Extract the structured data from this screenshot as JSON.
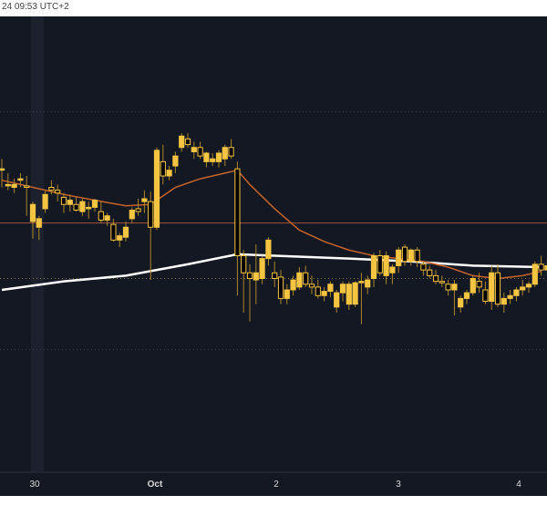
{
  "header": {
    "timestamp": "24 09:53 UTC+2"
  },
  "colors": {
    "background": "#141823",
    "candle": "#f5c542",
    "ema_fast": "#c8642a",
    "ma_slow": "#ffffff",
    "hline_orange": "#a0523a",
    "tick_text": "#d9d9d9"
  },
  "chart_data": {
    "type": "candlestick",
    "x_tick_labels": [
      "30",
      "Oct",
      "2",
      "3",
      "4"
    ],
    "candles": [
      {
        "o": 213,
        "h": 220,
        "l": 200,
        "c": 213
      },
      {
        "o": 202,
        "h": 210,
        "l": 198,
        "c": 202
      },
      {
        "o": 200,
        "h": 206,
        "l": 196,
        "c": 202
      },
      {
        "o": 205,
        "h": 210,
        "l": 200,
        "c": 206
      },
      {
        "o": 201,
        "h": 208,
        "l": 180,
        "c": 200
      },
      {
        "o": 176,
        "h": 190,
        "l": 164,
        "c": 188
      },
      {
        "o": 172,
        "h": 180,
        "l": 163,
        "c": 178
      },
      {
        "o": 185,
        "h": 198,
        "l": 182,
        "c": 195
      },
      {
        "o": 200,
        "h": 205,
        "l": 195,
        "c": 198
      },
      {
        "o": 198,
        "h": 202,
        "l": 190,
        "c": 196
      },
      {
        "o": 193,
        "h": 196,
        "l": 182,
        "c": 188
      },
      {
        "o": 188,
        "h": 195,
        "l": 183,
        "c": 191
      },
      {
        "o": 188,
        "h": 193,
        "l": 183,
        "c": 184
      },
      {
        "o": 183,
        "h": 192,
        "l": 180,
        "c": 190
      },
      {
        "o": 185,
        "h": 190,
        "l": 178,
        "c": 186
      },
      {
        "o": 186,
        "h": 192,
        "l": 183,
        "c": 191
      },
      {
        "o": 183,
        "h": 190,
        "l": 175,
        "c": 177
      },
      {
        "o": 177,
        "h": 182,
        "l": 173,
        "c": 180
      },
      {
        "o": 174,
        "h": 178,
        "l": 162,
        "c": 163
      },
      {
        "o": 163,
        "h": 168,
        "l": 158,
        "c": 166
      },
      {
        "o": 165,
        "h": 176,
        "l": 162,
        "c": 172
      },
      {
        "o": 178,
        "h": 186,
        "l": 175,
        "c": 184
      },
      {
        "o": 185,
        "h": 192,
        "l": 180,
        "c": 183
      },
      {
        "o": 190,
        "h": 198,
        "l": 182,
        "c": 192
      },
      {
        "o": 190,
        "h": 197,
        "l": 135,
        "c": 172
      },
      {
        "o": 172,
        "h": 228,
        "l": 170,
        "c": 226
      },
      {
        "o": 218,
        "h": 230,
        "l": 202,
        "c": 208
      },
      {
        "o": 208,
        "h": 215,
        "l": 205,
        "c": 212
      },
      {
        "o": 215,
        "h": 225,
        "l": 210,
        "c": 222
      },
      {
        "o": 228,
        "h": 238,
        "l": 225,
        "c": 236
      },
      {
        "o": 234,
        "h": 238,
        "l": 228,
        "c": 230
      },
      {
        "o": 225,
        "h": 232,
        "l": 220,
        "c": 228
      },
      {
        "o": 228,
        "h": 232,
        "l": 220,
        "c": 222
      },
      {
        "o": 218,
        "h": 225,
        "l": 214,
        "c": 224
      },
      {
        "o": 218,
        "h": 224,
        "l": 215,
        "c": 220
      },
      {
        "o": 218,
        "h": 226,
        "l": 214,
        "c": 224
      },
      {
        "o": 220,
        "h": 230,
        "l": 215,
        "c": 228
      },
      {
        "o": 228,
        "h": 234,
        "l": 220,
        "c": 222
      },
      {
        "o": 213,
        "h": 218,
        "l": 124,
        "c": 152
      },
      {
        "o": 152,
        "h": 156,
        "l": 112,
        "c": 140
      },
      {
        "o": 140,
        "h": 146,
        "l": 106,
        "c": 136
      },
      {
        "o": 135,
        "h": 160,
        "l": 118,
        "c": 140
      },
      {
        "o": 136,
        "h": 152,
        "l": 132,
        "c": 150
      },
      {
        "o": 150,
        "h": 165,
        "l": 145,
        "c": 163
      },
      {
        "o": 140,
        "h": 148,
        "l": 130,
        "c": 136
      },
      {
        "o": 137,
        "h": 142,
        "l": 118,
        "c": 122
      },
      {
        "o": 122,
        "h": 132,
        "l": 118,
        "c": 128
      },
      {
        "o": 128,
        "h": 138,
        "l": 124,
        "c": 135
      },
      {
        "o": 130,
        "h": 144,
        "l": 128,
        "c": 140
      },
      {
        "o": 140,
        "h": 145,
        "l": 130,
        "c": 132
      },
      {
        "o": 132,
        "h": 138,
        "l": 125,
        "c": 130
      },
      {
        "o": 130,
        "h": 135,
        "l": 122,
        "c": 124
      },
      {
        "o": 124,
        "h": 130,
        "l": 120,
        "c": 127
      },
      {
        "o": 127,
        "h": 134,
        "l": 123,
        "c": 132
      },
      {
        "o": 116,
        "h": 128,
        "l": 112,
        "c": 126
      },
      {
        "o": 126,
        "h": 134,
        "l": 120,
        "c": 132
      },
      {
        "o": 118,
        "h": 134,
        "l": 114,
        "c": 132
      },
      {
        "o": 118,
        "h": 134,
        "l": 116,
        "c": 133
      },
      {
        "o": 134,
        "h": 140,
        "l": 104,
        "c": 134
      },
      {
        "o": 130,
        "h": 138,
        "l": 125,
        "c": 135
      },
      {
        "o": 136,
        "h": 154,
        "l": 130,
        "c": 152
      },
      {
        "o": 152,
        "h": 156,
        "l": 138,
        "c": 140
      },
      {
        "o": 138,
        "h": 155,
        "l": 132,
        "c": 152
      },
      {
        "o": 140,
        "h": 146,
        "l": 132,
        "c": 144
      },
      {
        "o": 145,
        "h": 158,
        "l": 140,
        "c": 156
      },
      {
        "o": 158,
        "h": 160,
        "l": 145,
        "c": 148
      },
      {
        "o": 148,
        "h": 157,
        "l": 145,
        "c": 156
      },
      {
        "o": 156,
        "h": 158,
        "l": 144,
        "c": 148
      },
      {
        "o": 146,
        "h": 148,
        "l": 138,
        "c": 142
      },
      {
        "o": 142,
        "h": 145,
        "l": 136,
        "c": 138
      },
      {
        "o": 138,
        "h": 142,
        "l": 132,
        "c": 134
      },
      {
        "o": 134,
        "h": 138,
        "l": 130,
        "c": 133
      },
      {
        "o": 132,
        "h": 135,
        "l": 124,
        "c": 128
      },
      {
        "o": 128,
        "h": 135,
        "l": 110,
        "c": 132
      },
      {
        "o": 116,
        "h": 124,
        "l": 112,
        "c": 122
      },
      {
        "o": 122,
        "h": 128,
        "l": 118,
        "c": 126
      },
      {
        "o": 126,
        "h": 138,
        "l": 124,
        "c": 136
      },
      {
        "o": 134,
        "h": 140,
        "l": 126,
        "c": 130
      },
      {
        "o": 128,
        "h": 134,
        "l": 118,
        "c": 120
      },
      {
        "o": 120,
        "h": 145,
        "l": 114,
        "c": 140
      },
      {
        "o": 140,
        "h": 146,
        "l": 116,
        "c": 118
      },
      {
        "o": 118,
        "h": 126,
        "l": 112,
        "c": 122
      },
      {
        "o": 122,
        "h": 128,
        "l": 118,
        "c": 124
      },
      {
        "o": 124,
        "h": 130,
        "l": 120,
        "c": 128
      },
      {
        "o": 128,
        "h": 135,
        "l": 124,
        "c": 130
      },
      {
        "o": 130,
        "h": 134,
        "l": 126,
        "c": 132
      },
      {
        "o": 132,
        "h": 148,
        "l": 130,
        "c": 146
      },
      {
        "o": 146,
        "h": 152,
        "l": 138,
        "c": 142
      },
      {
        "o": 142,
        "h": 150,
        "l": 138,
        "c": 145
      }
    ],
    "ema_fast": [
      {
        "i": 0,
        "v": 205
      },
      {
        "i": 5,
        "v": 200
      },
      {
        "i": 10,
        "v": 195
      },
      {
        "i": 15,
        "v": 191
      },
      {
        "i": 20,
        "v": 187
      },
      {
        "i": 24,
        "v": 188
      },
      {
        "i": 28,
        "v": 200
      },
      {
        "i": 32,
        "v": 206
      },
      {
        "i": 36,
        "v": 210
      },
      {
        "i": 38,
        "v": 212
      },
      {
        "i": 40,
        "v": 202
      },
      {
        "i": 44,
        "v": 185
      },
      {
        "i": 48,
        "v": 170
      },
      {
        "i": 52,
        "v": 162
      },
      {
        "i": 56,
        "v": 156
      },
      {
        "i": 60,
        "v": 152
      },
      {
        "i": 64,
        "v": 150
      },
      {
        "i": 68,
        "v": 148
      },
      {
        "i": 72,
        "v": 144
      },
      {
        "i": 76,
        "v": 138
      },
      {
        "i": 80,
        "v": 136
      },
      {
        "i": 84,
        "v": 138
      },
      {
        "i": 87,
        "v": 141
      }
    ],
    "ma_slow": [
      {
        "i": 0,
        "v": 128
      },
      {
        "i": 10,
        "v": 134
      },
      {
        "i": 20,
        "v": 138
      },
      {
        "i": 30,
        "v": 146
      },
      {
        "i": 38,
        "v": 153
      },
      {
        "i": 44,
        "v": 152
      },
      {
        "i": 56,
        "v": 150
      },
      {
        "i": 66,
        "v": 148
      },
      {
        "i": 76,
        "v": 145
      },
      {
        "i": 87,
        "v": 144
      }
    ],
    "h_lines": [
      {
        "v": 175,
        "style": "solid",
        "color": "orange"
      },
      {
        "v": 136,
        "style": "dotted",
        "color": "yellow"
      },
      {
        "v": 253,
        "style": "dotted",
        "color": "gray"
      },
      {
        "v": 86,
        "style": "dotted",
        "color": "gray"
      }
    ],
    "y_range": [
      0,
      320
    ],
    "grid": true
  }
}
